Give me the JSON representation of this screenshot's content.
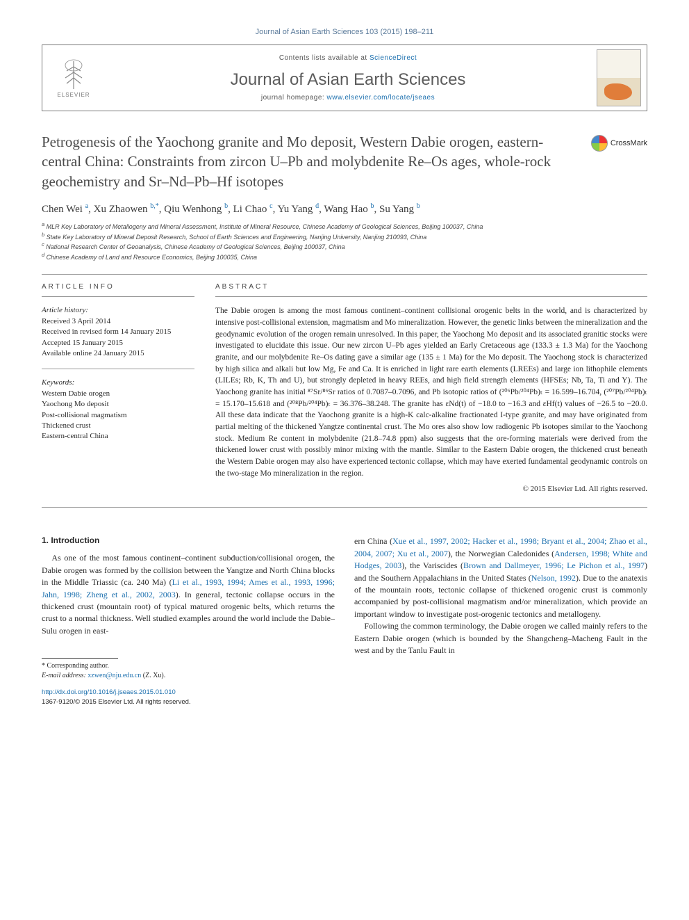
{
  "journal_ref": "Journal of Asian Earth Sciences 103 (2015) 198–211",
  "header": {
    "contents_prefix": "Contents lists available at ",
    "contents_link": "ScienceDirect",
    "journal_title": "Journal of Asian Earth Sciences",
    "homepage_prefix": "journal homepage: ",
    "homepage_link": "www.elsevier.com/locate/jseaes",
    "publisher_label": "ELSEVIER"
  },
  "crossmark_label": "CrossMark",
  "article_title": "Petrogenesis of the Yaochong granite and Mo deposit, Western Dabie orogen, eastern-central China: Constraints from zircon U–Pb and molybdenite Re–Os ages, whole-rock geochemistry and Sr–Nd–Pb–Hf isotopes",
  "authors_html": "Chen Wei <sup>a</sup>, Xu Zhaowen <sup>b,*</sup>, Qiu Wenhong <sup>b</sup>, Li Chao <sup>c</sup>, Yu Yang <sup>d</sup>, Wang Hao <sup>b</sup>, Su Yang <sup>b</sup>",
  "affiliations": [
    "a MLR Key Laboratory of Metallogeny and Mineral Assessment, Institute of Mineral Resource, Chinese Academy of Geological Sciences, Beijing 100037, China",
    "b State Key Laboratory of Mineral Deposit Research, School of Earth Sciences and Engineering, Nanjing University, Nanjing 210093, China",
    "c National Research Center of Geoanalysis, Chinese Academy of Geological Sciences, Beijing 100037, China",
    "d Chinese Academy of Land and Resource Economics, Beijing 100035, China"
  ],
  "article_info": {
    "heading": "ARTICLE INFO",
    "history_head": "Article history:",
    "history": [
      "Received 3 April 2014",
      "Received in revised form 14 January 2015",
      "Accepted 15 January 2015",
      "Available online 24 January 2015"
    ],
    "keywords_head": "Keywords:",
    "keywords": [
      "Western Dabie orogen",
      "Yaochong Mo deposit",
      "Post-collisional magmatism",
      "Thickened crust",
      "Eastern-central China"
    ]
  },
  "abstract": {
    "heading": "ABSTRACT",
    "text": "The Dabie orogen is among the most famous continent–continent collisional orogenic belts in the world, and is characterized by intensive post-collisional extension, magmatism and Mo mineralization. However, the genetic links between the mineralization and the geodynamic evolution of the orogen remain unresolved. In this paper, the Yaochong Mo deposit and its associated granitic stocks were investigated to elucidate this issue. Our new zircon U–Pb ages yielded an Early Cretaceous age (133.3 ± 1.3 Ma) for the Yaochong granite, and our molybdenite Re–Os dating gave a similar age (135 ± 1 Ma) for the Mo deposit. The Yaochong stock is characterized by high silica and alkali but low Mg, Fe and Ca. It is enriched in light rare earth elements (LREEs) and large ion lithophile elements (LILEs; Rb, K, Th and U), but strongly depleted in heavy REEs, and high field strength elements (HFSEs; Nb, Ta, Ti and Y). The Yaochong granite has initial ⁸⁷Sr/⁸⁶Sr ratios of 0.7087–0.7096, and Pb isotopic ratios of (²⁰⁶Pb/²⁰⁴Pb)ₜ = 16.599–16.704, (²⁰⁷Pb/²⁰⁴Pb)ₜ = 15.170–15.618 and (²⁰⁸Pb/²⁰⁴Pb)ₜ = 36.376–38.248. The granite has εNd(t) of −18.0 to −16.3 and εHf(t) values of −26.5 to −20.0. All these data indicate that the Yaochong granite is a high-K calc-alkaline fractionated I-type granite, and may have originated from partial melting of the thickened Yangtze continental crust. The Mo ores also show low radiogenic Pb isotopes similar to the Yaochong stock. Medium Re content in molybdenite (21.8–74.8 ppm) also suggests that the ore-forming materials were derived from the thickened lower crust with possibly minor mixing with the mantle. Similar to the Eastern Dabie orogen, the thickened crust beneath the Western Dabie orogen may also have experienced tectonic collapse, which may have exerted fundamental geodynamic controls on the two-stage Mo mineralization in the region.",
    "copyright": "© 2015 Elsevier Ltd. All rights reserved."
  },
  "body": {
    "intro_heading": "1. Introduction",
    "left_para": "As one of the most famous continent–continent subduction/collisional orogen, the Dabie orogen was formed by the collision between the Yangtze and North China blocks in the Middle Triassic (ca. 240 Ma) (<span class='cite'>Li et al., 1993, 1994; Ames et al., 1993, 1996; Jahn, 1998; Zheng et al., 2002, 2003</span>). In general, tectonic collapse occurs in the thickened crust (mountain root) of typical matured orogenic belts, which returns the crust to a normal thickness. Well studied examples around the world include the Dabie–Sulu orogen in east-",
    "right_para1": "ern China (<span class='cite'>Xue et al., 1997, 2002; Hacker et al., 1998; Bryant et al., 2004; Zhao et al., 2004, 2007; Xu et al., 2007</span>), the Norwegian Caledonides (<span class='cite'>Andersen, 1998; White and Hodges, 2003</span>), the Variscides (<span class='cite'>Brown and Dallmeyer, 1996; Le Pichon et al., 1997</span>) and the Southern Appalachians in the United States (<span class='cite'>Nelson, 1992</span>). Due to the anatexis of the mountain roots, tectonic collapse of thickened orogenic crust is commonly accompanied by post-collisional magmatism and/or mineralization, which provide an important window to investigate post-orogenic tectonics and metallogeny.",
    "right_para2": "Following the common terminology, the Dabie orogen we called mainly refers to the Eastern Dabie orogen (which is bounded by the Shangcheng–Macheng Fault in the west and by the Tanlu Fault in"
  },
  "footer": {
    "corresponding": "* Corresponding author.",
    "email_label": "E-mail address: ",
    "email": "xzwen@nju.edu.cn",
    "email_suffix": " (Z. Xu).",
    "doi": "http://dx.doi.org/10.1016/j.jseaes.2015.01.010",
    "issn_line": "1367-9120/© 2015 Elsevier Ltd. All rights reserved."
  },
  "colors": {
    "link": "#1b6fae",
    "text": "#2a2a2a",
    "heading_gray": "#4a4a4a"
  }
}
